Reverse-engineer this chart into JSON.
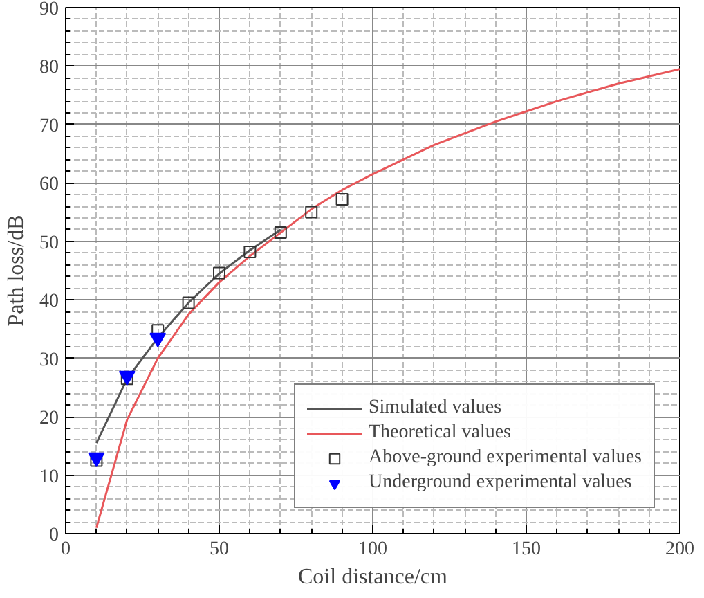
{
  "chart_data": {
    "type": "line",
    "xlabel": "Coil distance/cm",
    "ylabel": "Path loss/dB",
    "xlim": [
      0,
      200
    ],
    "ylim": [
      0,
      90
    ],
    "xticks": [
      0,
      50,
      100,
      150,
      200
    ],
    "yticks": [
      0,
      10,
      20,
      30,
      40,
      50,
      60,
      70,
      80,
      90
    ],
    "grid": true,
    "legend": "bottom right",
    "series": [
      {
        "name": "Simulated values",
        "color": "#555555",
        "x": [
          10,
          20,
          30,
          40,
          50,
          60,
          70
        ],
        "values": [
          15.5,
          26.5,
          33.5,
          39.5,
          44.5,
          48.5,
          52
        ]
      },
      {
        "name": "Theoretical values",
        "color": "#e8575a",
        "x": [
          10,
          20,
          30,
          40,
          50,
          60,
          70,
          80,
          90,
          100,
          120,
          140,
          160,
          180,
          200
        ],
        "values": [
          1,
          19.5,
          30,
          37.5,
          43,
          47.5,
          51.5,
          55.5,
          58.8,
          61.5,
          66.5,
          70.5,
          74,
          77,
          79.5
        ]
      },
      {
        "name": "Above-ground experimental values",
        "type": "scatter",
        "marker": "square",
        "color": "#333333",
        "x": [
          10,
          20,
          30,
          40,
          50,
          60,
          70,
          80,
          90
        ],
        "values": [
          12.5,
          26.5,
          34.8,
          39.5,
          44.6,
          48.2,
          51.5,
          55,
          57.2
        ]
      },
      {
        "name": "Underground experimental values",
        "type": "scatter",
        "marker": "triangle",
        "color": "#0000ff",
        "x": [
          10,
          20,
          30
        ],
        "values": [
          13,
          27,
          33.5
        ]
      }
    ]
  }
}
